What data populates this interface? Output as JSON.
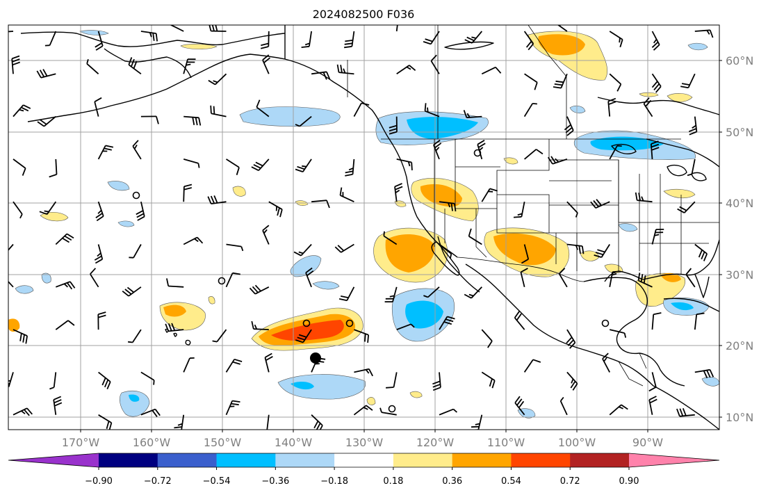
{
  "title": "2024082500 F036",
  "map": {
    "lon_labels": [
      "170°W",
      "160°W",
      "150°W",
      "140°W",
      "130°W",
      "120°W",
      "110°W",
      "100°W",
      "90°W"
    ],
    "lat_labels": [
      "60°N",
      "50°N",
      "40°N",
      "30°N",
      "20°N",
      "10°N"
    ],
    "layers": [
      "coastlines",
      "country-borders",
      "us-state-borders",
      "lat-lon-grid",
      "filled-contours",
      "wind-barbs"
    ]
  },
  "colorbar": {
    "labels": [
      "−0.90",
      "−0.72",
      "−0.54",
      "−0.36",
      "−0.18",
      "0.18",
      "0.36",
      "0.54",
      "0.72",
      "0.90"
    ],
    "colors": [
      "#9932cc",
      "#000080",
      "#3a5fcd",
      "#00bfff",
      "#add8f7",
      "#ffffff",
      "#ffec8b",
      "#ffa500",
      "#ff4500",
      "#b22222",
      "#ff82ab"
    ],
    "extend": "both"
  }
}
